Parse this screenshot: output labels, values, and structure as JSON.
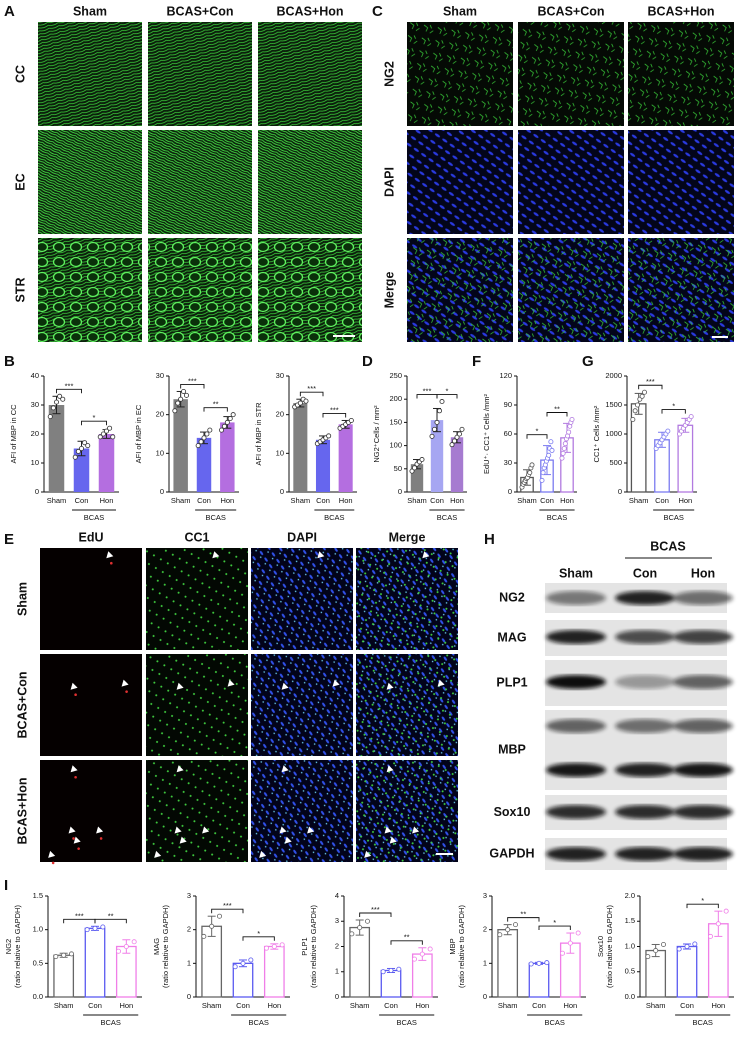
{
  "panel_labels": [
    "A",
    "B",
    "C",
    "D",
    "E",
    "F",
    "G",
    "H",
    "I"
  ],
  "panel_a": {
    "columns": [
      "Sham",
      "BCAS+Con",
      "BCAS+Hon"
    ],
    "rows": [
      "CC",
      "EC",
      "STR"
    ]
  },
  "panel_c": {
    "columns": [
      "Sham",
      "BCAS+Con",
      "BCAS+Hon"
    ],
    "rows": [
      "NG2",
      "DAPI",
      "Merge"
    ]
  },
  "panel_e": {
    "columns": [
      "EdU",
      "CC1",
      "DAPI",
      "Merge"
    ],
    "rows": [
      "Sham",
      "BCAS+Con",
      "BCAS+Hon"
    ]
  },
  "panel_h": {
    "group": "BCAS",
    "columns": [
      "Sham",
      "Con",
      "Hon"
    ],
    "rows": [
      "NG2",
      "MAG",
      "PLP1",
      "MBP",
      "Sox10",
      "GAPDH"
    ]
  },
  "chart_data": [
    {
      "type": "bar",
      "ylabel": [
        "AFI of MBP in CC"
      ],
      "categories": [
        "Sham",
        "Con",
        "Hon"
      ],
      "group_label": "BCAS",
      "values": [
        30,
        15,
        20
      ],
      "errors": [
        3,
        2.5,
        1.5
      ],
      "points": [
        [
          26,
          29,
          31,
          33,
          32
        ],
        [
          12,
          14,
          15,
          17,
          16
        ],
        [
          19,
          20,
          21,
          22,
          19
        ]
      ],
      "colors": [
        "#808080",
        "#6666ee",
        "#b46ee0"
      ],
      "bar_style": "solid",
      "ylim": [
        0,
        40
      ],
      "yticks": [
        0,
        10,
        20,
        30,
        40
      ],
      "annotations": [
        {
          "text": "***",
          "between": [
            "Sham",
            "Con"
          ]
        },
        {
          "text": "*",
          "between": [
            "Con",
            "Hon"
          ]
        }
      ]
    },
    {
      "type": "bar",
      "ylabel": [
        "AFI of MBP in EC"
      ],
      "categories": [
        "Sham",
        "Con",
        "Hon"
      ],
      "group_label": "BCAS",
      "values": [
        24,
        14,
        18
      ],
      "errors": [
        2,
        1.5,
        1.5
      ],
      "points": [
        [
          21,
          23,
          24,
          26,
          25
        ],
        [
          12,
          13,
          14,
          15,
          16
        ],
        [
          16,
          17,
          18,
          19,
          20
        ]
      ],
      "colors": [
        "#808080",
        "#6666ee",
        "#b46ee0"
      ],
      "bar_style": "solid",
      "ylim": [
        0,
        30
      ],
      "yticks": [
        0,
        10,
        20,
        30
      ],
      "annotations": [
        {
          "text": "***",
          "between": [
            "Sham",
            "Con"
          ]
        },
        {
          "text": "**",
          "between": [
            "Con",
            "Hon"
          ]
        }
      ]
    },
    {
      "type": "bar",
      "ylabel": [
        "AFI of MBP in STR"
      ],
      "categories": [
        "Sham",
        "Con",
        "Hon"
      ],
      "group_label": "BCAS",
      "values": [
        23,
        13.5,
        17.5
      ],
      "errors": [
        1,
        1,
        1
      ],
      "points": [
        [
          22,
          22.5,
          23,
          24,
          23.5
        ],
        [
          12.5,
          13,
          13.5,
          14,
          14.5
        ],
        [
          16.5,
          17,
          17.5,
          18,
          18.5
        ]
      ],
      "colors": [
        "#808080",
        "#6666ee",
        "#b46ee0"
      ],
      "bar_style": "solid",
      "ylim": [
        0,
        30
      ],
      "yticks": [
        0,
        10,
        20,
        30
      ],
      "annotations": [
        {
          "text": "***",
          "between": [
            "Sham",
            "Con"
          ]
        },
        {
          "text": "***",
          "between": [
            "Con",
            "Hon"
          ]
        }
      ]
    },
    {
      "type": "bar",
      "ylabel": [
        "NG2⁺Cells / mm²"
      ],
      "categories": [
        "Sham",
        "Con",
        "Hon"
      ],
      "group_label": "BCAS",
      "values": [
        60,
        155,
        118
      ],
      "errors": [
        10,
        25,
        12
      ],
      "points": [
        [
          45,
          52,
          60,
          65,
          70
        ],
        [
          120,
          135,
          150,
          175,
          195
        ],
        [
          102,
          110,
          118,
          125,
          135
        ]
      ],
      "colors": [
        "#7f7f7f",
        "#a6a6f2",
        "#a67bd0"
      ],
      "bar_style": "solid",
      "ylim": [
        0,
        250
      ],
      "yticks": [
        0,
        50,
        100,
        150,
        200,
        250
      ],
      "annotations": [
        {
          "text": "***",
          "between": [
            "Sham",
            "Con"
          ]
        },
        {
          "text": "*",
          "between": [
            "Con",
            "Hon"
          ]
        }
      ]
    },
    {
      "type": "bar",
      "ylabel": [
        "EdU⁺· CC1⁺ Cells /mm²"
      ],
      "categories": [
        "Sham",
        "Con",
        "Hon"
      ],
      "group_label": "BCAS",
      "values": [
        15,
        33,
        56
      ],
      "errors": [
        8,
        15,
        15
      ],
      "points": [
        [
          5,
          8,
          10,
          12,
          14,
          15,
          18,
          20,
          25,
          28
        ],
        [
          12,
          20,
          25,
          28,
          32,
          35,
          38,
          45,
          52,
          43
        ],
        [
          35,
          40,
          45,
          50,
          55,
          58,
          62,
          68,
          72,
          75
        ]
      ],
      "colors": [
        "#555555",
        "#7b7bf0",
        "#b27ae0"
      ],
      "bar_style": "outline",
      "ylim": [
        0,
        120
      ],
      "yticks": [
        0,
        30,
        60,
        90,
        120
      ],
      "annotations": [
        {
          "text": "*",
          "between": [
            "Sham",
            "Con"
          ]
        },
        {
          "text": "**",
          "between": [
            "Con",
            "Hon"
          ]
        }
      ]
    },
    {
      "type": "bar",
      "ylabel": [
        "CC1⁺ Cells /mm²"
      ],
      "categories": [
        "Sham",
        "Con",
        "Hon"
      ],
      "group_label": "BCAS",
      "values": [
        1520,
        900,
        1150
      ],
      "errors": [
        180,
        130,
        120
      ],
      "points": [
        [
          1250,
          1400,
          1500,
          1600,
          1650,
          1720
        ],
        [
          750,
          800,
          850,
          900,
          950,
          1000,
          1050
        ],
        [
          1000,
          1050,
          1100,
          1150,
          1200,
          1250,
          1300
        ]
      ],
      "colors": [
        "#555555",
        "#7b7bf0",
        "#b27ae0"
      ],
      "bar_style": "outline",
      "ylim": [
        0,
        2000
      ],
      "yticks": [
        0,
        500,
        1000,
        1500,
        2000
      ],
      "annotations": [
        {
          "text": "***",
          "between": [
            "Sham",
            "Con"
          ]
        },
        {
          "text": "*",
          "between": [
            "Con",
            "Hon"
          ]
        }
      ]
    },
    {
      "type": "bar",
      "ylabel": [
        "NG2",
        "(ratio relative to GAPDH)"
      ],
      "categories": [
        "Sham",
        "Con",
        "Hon"
      ],
      "group_label": "BCAS",
      "values": [
        0.62,
        1.02,
        0.75
      ],
      "errors": [
        0.03,
        0.03,
        0.1
      ],
      "points": [
        [
          0.6,
          0.62,
          0.64
        ],
        [
          1.0,
          1.02,
          1.04
        ],
        [
          0.68,
          0.75,
          0.82
        ]
      ],
      "colors": [
        "#666666",
        "#5a5af0",
        "#f07ee8"
      ],
      "bar_style": "outline",
      "ylim": [
        0,
        1.5
      ],
      "yticks": [
        {
          "value": 0,
          "label": "0.0"
        },
        {
          "value": 0.5,
          "label": "0.5"
        },
        {
          "value": 1,
          "label": "1.0"
        },
        {
          "value": 1.5,
          "label": "1.5"
        }
      ],
      "annotations": [
        {
          "text": "***",
          "between": [
            "Sham",
            "Con"
          ]
        },
        {
          "text": "**",
          "between": [
            "Con",
            "Hon"
          ]
        }
      ]
    },
    {
      "type": "bar",
      "ylabel": [
        "MAG",
        "(ratio relative to GAPDH)"
      ],
      "categories": [
        "Sham",
        "Con",
        "Hon"
      ],
      "group_label": "BCAS",
      "values": [
        2.1,
        1.0,
        1.5
      ],
      "errors": [
        0.3,
        0.1,
        0.08
      ],
      "points": [
        [
          1.8,
          2.1,
          2.4
        ],
        [
          0.9,
          1.0,
          1.1
        ],
        [
          1.45,
          1.5,
          1.55
        ]
      ],
      "colors": [
        "#666666",
        "#5a5af0",
        "#f07ee8"
      ],
      "bar_style": "outline",
      "ylim": [
        0,
        3
      ],
      "yticks": [
        0,
        1,
        2,
        3
      ],
      "annotations": [
        {
          "text": "***",
          "between": [
            "Sham",
            "Con"
          ]
        },
        {
          "text": "*",
          "between": [
            "Con",
            "Hon"
          ]
        }
      ]
    },
    {
      "type": "bar",
      "ylabel": [
        "PLP1",
        "(ratio relative to GAPDH)"
      ],
      "categories": [
        "Sham",
        "Con",
        "Hon"
      ],
      "group_label": "BCAS",
      "values": [
        2.75,
        1.05,
        1.7
      ],
      "errors": [
        0.3,
        0.08,
        0.25
      ],
      "points": [
        [
          2.5,
          2.75,
          3.0
        ],
        [
          1.0,
          1.05,
          1.1
        ],
        [
          1.5,
          1.7,
          1.9
        ]
      ],
      "colors": [
        "#666666",
        "#5a5af0",
        "#f07ee8"
      ],
      "bar_style": "outline",
      "ylim": [
        0,
        4
      ],
      "yticks": [
        0,
        1,
        2,
        3,
        4
      ],
      "annotations": [
        {
          "text": "***",
          "between": [
            "Sham",
            "Con"
          ]
        },
        {
          "text": "**",
          "between": [
            "Con",
            "Hon"
          ]
        }
      ]
    },
    {
      "type": "bar",
      "ylabel": [
        "MBP",
        "(ratio relative to GAPDH)"
      ],
      "categories": [
        "Sham",
        "Con",
        "Hon"
      ],
      "group_label": "BCAS",
      "values": [
        2.0,
        1.0,
        1.6
      ],
      "errors": [
        0.15,
        0.03,
        0.3
      ],
      "points": [
        [
          1.85,
          2.0,
          2.15
        ],
        [
          0.98,
          1.0,
          1.02
        ],
        [
          1.3,
          1.6,
          1.9
        ]
      ],
      "colors": [
        "#666666",
        "#5a5af0",
        "#f07ee8"
      ],
      "bar_style": "outline",
      "ylim": [
        0,
        3
      ],
      "yticks": [
        0,
        1,
        2,
        3
      ],
      "annotations": [
        {
          "text": "**",
          "between": [
            "Sham",
            "Con"
          ]
        },
        {
          "text": "*",
          "between": [
            "Con",
            "Hon"
          ]
        }
      ]
    },
    {
      "type": "bar",
      "ylabel": [
        "Sox10",
        "(ratio relative to GAPDH)"
      ],
      "categories": [
        "Sham",
        "Con",
        "Hon"
      ],
      "group_label": "BCAS",
      "values": [
        0.92,
        1.0,
        1.45
      ],
      "errors": [
        0.12,
        0.05,
        0.25
      ],
      "points": [
        [
          0.8,
          0.92,
          1.04
        ],
        [
          0.95,
          1.0,
          1.05
        ],
        [
          1.2,
          1.45,
          1.7
        ]
      ],
      "colors": [
        "#666666",
        "#5a5af0",
        "#f07ee8"
      ],
      "bar_style": "outline",
      "ylim": [
        0,
        2
      ],
      "yticks": [
        {
          "value": 0,
          "label": "0.0"
        },
        {
          "value": 0.5,
          "label": "0.5"
        },
        {
          "value": 1,
          "label": "1.0"
        },
        {
          "value": 1.5,
          "label": "1.5"
        },
        {
          "value": 2,
          "label": "2.0"
        }
      ],
      "annotations": [
        {
          "text": "*",
          "between": [
            "Con",
            "Hon"
          ]
        }
      ]
    }
  ]
}
